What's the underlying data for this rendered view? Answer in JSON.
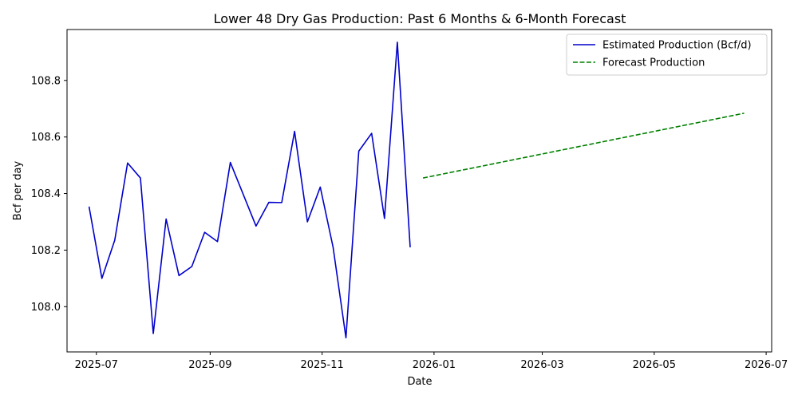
{
  "chart_data": {
    "type": "line",
    "title": "Lower 48 Dry Gas Production: Past 6 Months & 6-Month Forecast",
    "xlabel": "Date",
    "ylabel": "Bcf per day",
    "xlim": [
      "2025-06-15",
      "2026-07-04"
    ],
    "ylim": [
      107.84,
      108.98
    ],
    "x_ticks": [
      "2025-07-01",
      "2025-09-01",
      "2025-11-01",
      "2026-01-01",
      "2026-03-01",
      "2026-05-01",
      "2026-07-01"
    ],
    "x_tick_labels": [
      "2025-07",
      "2025-09",
      "2025-11",
      "2026-01",
      "2026-03",
      "2026-05",
      "2026-07"
    ],
    "y_ticks": [
      108.0,
      108.2,
      108.4,
      108.6,
      108.8
    ],
    "y_tick_labels": [
      "108.0",
      "108.2",
      "108.4",
      "108.6",
      "108.8"
    ],
    "grid": false,
    "legend_position": "top-right",
    "series": [
      {
        "name": "Estimated Production (Bcf/d)",
        "color": "#0000cc",
        "style": "solid",
        "points": [
          [
            "2025-06-27",
            108.354
          ],
          [
            "2025-07-04",
            108.1
          ],
          [
            "2025-07-11",
            108.235
          ],
          [
            "2025-07-18",
            108.508
          ],
          [
            "2025-07-25",
            108.455
          ],
          [
            "2025-08-01",
            107.905
          ],
          [
            "2025-08-08",
            108.31
          ],
          [
            "2025-08-15",
            108.11
          ],
          [
            "2025-08-22",
            108.142
          ],
          [
            "2025-08-29",
            108.263
          ],
          [
            "2025-09-05",
            108.23
          ],
          [
            "2025-09-12",
            108.51
          ],
          [
            "2025-09-26",
            108.285
          ],
          [
            "2025-10-03",
            108.369
          ],
          [
            "2025-10-10",
            108.368
          ],
          [
            "2025-10-17",
            108.62
          ],
          [
            "2025-10-24",
            108.3
          ],
          [
            "2025-10-31",
            108.423
          ],
          [
            "2025-11-07",
            108.21
          ],
          [
            "2025-11-14",
            107.89
          ],
          [
            "2025-11-21",
            108.55
          ],
          [
            "2025-11-28",
            108.613
          ],
          [
            "2025-12-05",
            108.312
          ],
          [
            "2025-12-12",
            108.935
          ],
          [
            "2025-12-19",
            108.21
          ]
        ]
      },
      {
        "name": "Forecast Production",
        "color": "#008000",
        "style": "dashed",
        "points": [
          [
            "2025-12-26",
            108.455
          ],
          [
            "2026-06-19",
            108.684
          ]
        ]
      }
    ]
  }
}
